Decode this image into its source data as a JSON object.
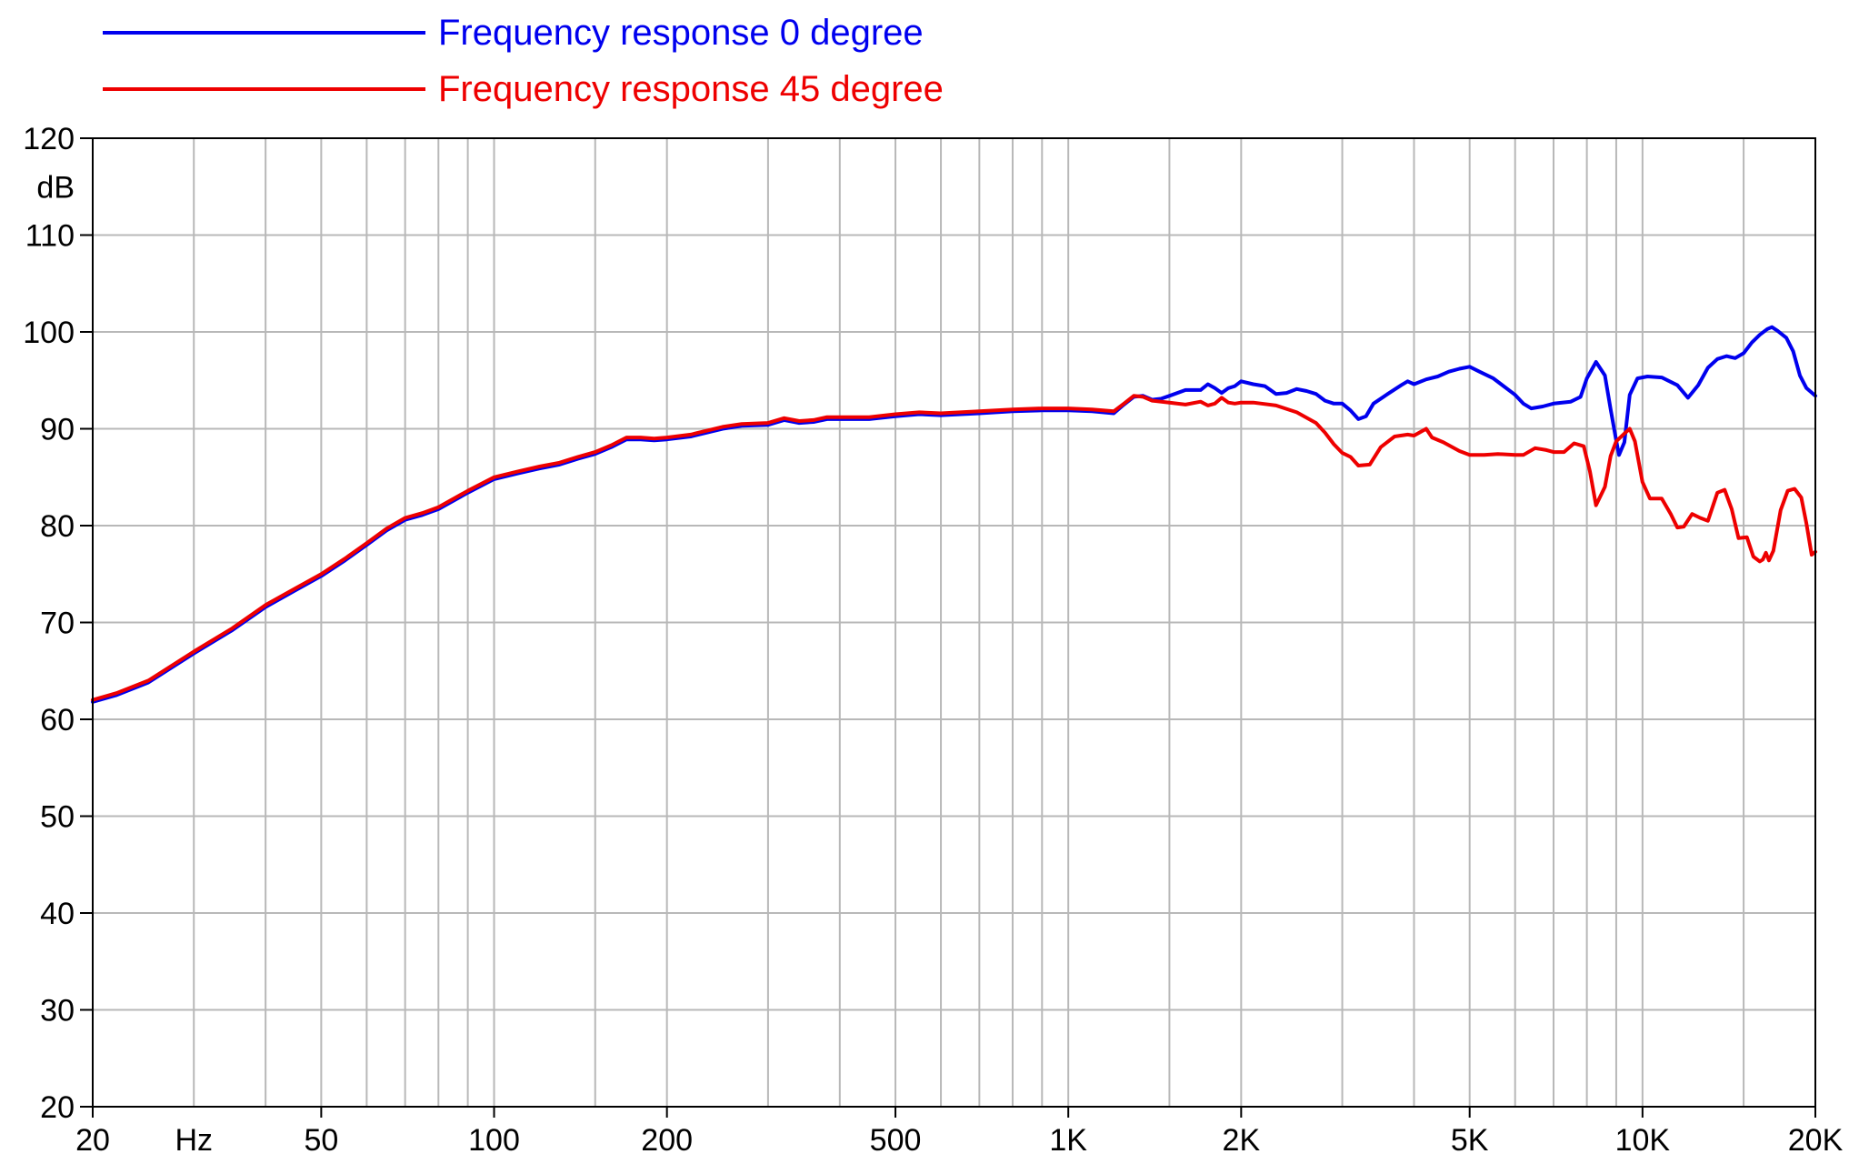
{
  "chart_data": {
    "type": "line",
    "title": "",
    "xlabel": "Hz",
    "ylabel": "dB",
    "x_scale": "log",
    "xlim": [
      20,
      20000
    ],
    "ylim": [
      20,
      120
    ],
    "grid": true,
    "legend_position": "top-left",
    "x_ticks": [
      {
        "value": 20,
        "label": "20"
      },
      {
        "value": 50,
        "label": "50"
      },
      {
        "value": 100,
        "label": "100"
      },
      {
        "value": 200,
        "label": "200"
      },
      {
        "value": 500,
        "label": "500"
      },
      {
        "value": 1000,
        "label": "1K"
      },
      {
        "value": 2000,
        "label": "2K"
      },
      {
        "value": 5000,
        "label": "5K"
      },
      {
        "value": 10000,
        "label": "10K"
      },
      {
        "value": 20000,
        "label": "20K"
      }
    ],
    "x_minor_gridlines": [
      30,
      40,
      60,
      70,
      80,
      90,
      150,
      300,
      400,
      600,
      700,
      800,
      900,
      1500,
      3000,
      4000,
      6000,
      7000,
      8000,
      9000,
      15000
    ],
    "y_ticks": [
      {
        "value": 20,
        "label": "20"
      },
      {
        "value": 30,
        "label": "30"
      },
      {
        "value": 40,
        "label": "40"
      },
      {
        "value": 50,
        "label": "50"
      },
      {
        "value": 60,
        "label": "60"
      },
      {
        "value": 70,
        "label": "70"
      },
      {
        "value": 80,
        "label": "80"
      },
      {
        "value": 90,
        "label": "90"
      },
      {
        "value": 100,
        "label": "100"
      },
      {
        "value": 110,
        "label": "110"
      },
      {
        "value": 120,
        "label": "120"
      }
    ],
    "series": [
      {
        "name": "Frequency response 0 degree",
        "color": "#0000ee",
        "points": [
          [
            20,
            61.8
          ],
          [
            22,
            62.5
          ],
          [
            25,
            63.8
          ],
          [
            30,
            66.8
          ],
          [
            35,
            69.2
          ],
          [
            40,
            71.6
          ],
          [
            45,
            73.3
          ],
          [
            50,
            74.8
          ],
          [
            55,
            76.4
          ],
          [
            60,
            78.0
          ],
          [
            65,
            79.5
          ],
          [
            70,
            80.6
          ],
          [
            75,
            81.1
          ],
          [
            80,
            81.7
          ],
          [
            90,
            83.4
          ],
          [
            100,
            84.8
          ],
          [
            110,
            85.4
          ],
          [
            120,
            85.9
          ],
          [
            130,
            86.3
          ],
          [
            140,
            86.9
          ],
          [
            150,
            87.4
          ],
          [
            160,
            88.1
          ],
          [
            170,
            88.9
          ],
          [
            180,
            88.9
          ],
          [
            190,
            88.8
          ],
          [
            200,
            88.9
          ],
          [
            220,
            89.2
          ],
          [
            250,
            90.0
          ],
          [
            270,
            90.3
          ],
          [
            300,
            90.4
          ],
          [
            320,
            90.9
          ],
          [
            340,
            90.6
          ],
          [
            360,
            90.7
          ],
          [
            380,
            91.0
          ],
          [
            400,
            91.0
          ],
          [
            450,
            91.0
          ],
          [
            500,
            91.3
          ],
          [
            550,
            91.5
          ],
          [
            600,
            91.4
          ],
          [
            700,
            91.6
          ],
          [
            800,
            91.8
          ],
          [
            900,
            91.9
          ],
          [
            1000,
            91.9
          ],
          [
            1100,
            91.8
          ],
          [
            1200,
            91.6
          ],
          [
            1250,
            92.5
          ],
          [
            1300,
            93.3
          ],
          [
            1350,
            93.4
          ],
          [
            1400,
            93.0
          ],
          [
            1450,
            93.1
          ],
          [
            1500,
            93.4
          ],
          [
            1600,
            94.0
          ],
          [
            1700,
            94.0
          ],
          [
            1750,
            94.6
          ],
          [
            1800,
            94.2
          ],
          [
            1850,
            93.7
          ],
          [
            1900,
            94.2
          ],
          [
            1950,
            94.4
          ],
          [
            2000,
            94.9
          ],
          [
            2100,
            94.6
          ],
          [
            2200,
            94.4
          ],
          [
            2300,
            93.6
          ],
          [
            2400,
            93.7
          ],
          [
            2500,
            94.1
          ],
          [
            2600,
            93.9
          ],
          [
            2700,
            93.6
          ],
          [
            2800,
            92.9
          ],
          [
            2900,
            92.6
          ],
          [
            3000,
            92.6
          ],
          [
            3100,
            91.9
          ],
          [
            3200,
            91.0
          ],
          [
            3300,
            91.3
          ],
          [
            3400,
            92.6
          ],
          [
            3600,
            93.6
          ],
          [
            3800,
            94.5
          ],
          [
            3900,
            94.9
          ],
          [
            4000,
            94.6
          ],
          [
            4200,
            95.1
          ],
          [
            4400,
            95.4
          ],
          [
            4600,
            95.9
          ],
          [
            4800,
            96.2
          ],
          [
            5000,
            96.4
          ],
          [
            5200,
            95.9
          ],
          [
            5500,
            95.2
          ],
          [
            6000,
            93.5
          ],
          [
            6200,
            92.6
          ],
          [
            6400,
            92.1
          ],
          [
            6700,
            92.3
          ],
          [
            7000,
            92.6
          ],
          [
            7500,
            92.8
          ],
          [
            7800,
            93.3
          ],
          [
            8000,
            95.2
          ],
          [
            8300,
            96.9
          ],
          [
            8600,
            95.5
          ],
          [
            8800,
            92.0
          ],
          [
            9000,
            88.8
          ],
          [
            9100,
            87.3
          ],
          [
            9300,
            88.6
          ],
          [
            9500,
            93.5
          ],
          [
            9800,
            95.2
          ],
          [
            10200,
            95.4
          ],
          [
            10800,
            95.3
          ],
          [
            11500,
            94.5
          ],
          [
            12000,
            93.2
          ],
          [
            12500,
            94.5
          ],
          [
            13000,
            96.3
          ],
          [
            13500,
            97.2
          ],
          [
            14000,
            97.5
          ],
          [
            14500,
            97.3
          ],
          [
            15000,
            97.8
          ],
          [
            15500,
            98.9
          ],
          [
            16000,
            99.7
          ],
          [
            16500,
            100.3
          ],
          [
            16800,
            100.5
          ],
          [
            17200,
            100.1
          ],
          [
            17800,
            99.4
          ],
          [
            18300,
            98.0
          ],
          [
            18800,
            95.5
          ],
          [
            19300,
            94.2
          ],
          [
            20000,
            93.4
          ]
        ]
      },
      {
        "name": "Frequency response 45 degree",
        "color": "#ee0000",
        "points": [
          [
            20,
            62.0
          ],
          [
            22,
            62.7
          ],
          [
            25,
            64.0
          ],
          [
            30,
            67.0
          ],
          [
            35,
            69.4
          ],
          [
            40,
            71.8
          ],
          [
            45,
            73.5
          ],
          [
            50,
            75.0
          ],
          [
            55,
            76.6
          ],
          [
            60,
            78.2
          ],
          [
            65,
            79.7
          ],
          [
            70,
            80.8
          ],
          [
            75,
            81.3
          ],
          [
            80,
            81.9
          ],
          [
            90,
            83.6
          ],
          [
            100,
            85.0
          ],
          [
            110,
            85.6
          ],
          [
            120,
            86.1
          ],
          [
            130,
            86.5
          ],
          [
            140,
            87.1
          ],
          [
            150,
            87.6
          ],
          [
            160,
            88.3
          ],
          [
            170,
            89.1
          ],
          [
            180,
            89.1
          ],
          [
            190,
            89.0
          ],
          [
            200,
            89.1
          ],
          [
            220,
            89.4
          ],
          [
            250,
            90.2
          ],
          [
            270,
            90.5
          ],
          [
            300,
            90.6
          ],
          [
            320,
            91.1
          ],
          [
            340,
            90.8
          ],
          [
            360,
            90.9
          ],
          [
            380,
            91.2
          ],
          [
            400,
            91.2
          ],
          [
            450,
            91.2
          ],
          [
            500,
            91.5
          ],
          [
            550,
            91.7
          ],
          [
            600,
            91.6
          ],
          [
            700,
            91.8
          ],
          [
            800,
            92.0
          ],
          [
            900,
            92.1
          ],
          [
            1000,
            92.1
          ],
          [
            1100,
            92.0
          ],
          [
            1200,
            91.8
          ],
          [
            1250,
            92.6
          ],
          [
            1300,
            93.4
          ],
          [
            1350,
            93.3
          ],
          [
            1400,
            92.9
          ],
          [
            1500,
            92.7
          ],
          [
            1600,
            92.5
          ],
          [
            1700,
            92.8
          ],
          [
            1750,
            92.4
          ],
          [
            1800,
            92.6
          ],
          [
            1850,
            93.2
          ],
          [
            1900,
            92.7
          ],
          [
            1950,
            92.6
          ],
          [
            2000,
            92.7
          ],
          [
            2100,
            92.7
          ],
          [
            2300,
            92.4
          ],
          [
            2500,
            91.7
          ],
          [
            2700,
            90.6
          ],
          [
            2800,
            89.6
          ],
          [
            2900,
            88.4
          ],
          [
            3000,
            87.5
          ],
          [
            3100,
            87.1
          ],
          [
            3200,
            86.2
          ],
          [
            3350,
            86.3
          ],
          [
            3500,
            88.1
          ],
          [
            3700,
            89.2
          ],
          [
            3900,
            89.4
          ],
          [
            4000,
            89.3
          ],
          [
            4200,
            90.0
          ],
          [
            4300,
            89.1
          ],
          [
            4500,
            88.6
          ],
          [
            4800,
            87.7
          ],
          [
            5000,
            87.3
          ],
          [
            5300,
            87.3
          ],
          [
            5600,
            87.4
          ],
          [
            6000,
            87.3
          ],
          [
            6200,
            87.3
          ],
          [
            6500,
            88.0
          ],
          [
            6800,
            87.8
          ],
          [
            7000,
            87.6
          ],
          [
            7300,
            87.6
          ],
          [
            7600,
            88.5
          ],
          [
            7900,
            88.2
          ],
          [
            8100,
            85.6
          ],
          [
            8300,
            82.1
          ],
          [
            8600,
            84.0
          ],
          [
            8800,
            87.2
          ],
          [
            9000,
            88.7
          ],
          [
            9300,
            89.5
          ],
          [
            9500,
            90.0
          ],
          [
            9700,
            88.7
          ],
          [
            10000,
            84.5
          ],
          [
            10300,
            82.8
          ],
          [
            10800,
            82.8
          ],
          [
            11200,
            81.2
          ],
          [
            11500,
            79.8
          ],
          [
            11800,
            79.9
          ],
          [
            12200,
            81.2
          ],
          [
            12600,
            80.8
          ],
          [
            13000,
            80.5
          ],
          [
            13500,
            83.4
          ],
          [
            13900,
            83.7
          ],
          [
            14300,
            81.7
          ],
          [
            14700,
            78.7
          ],
          [
            15200,
            78.8
          ],
          [
            15600,
            76.8
          ],
          [
            16000,
            76.3
          ],
          [
            16200,
            76.5
          ],
          [
            16400,
            77.2
          ],
          [
            16600,
            76.4
          ],
          [
            16900,
            77.4
          ],
          [
            17400,
            81.6
          ],
          [
            17900,
            83.6
          ],
          [
            18400,
            83.8
          ],
          [
            18900,
            82.9
          ],
          [
            19300,
            80.2
          ],
          [
            19700,
            77.0
          ],
          [
            20000,
            77.3
          ]
        ]
      }
    ]
  }
}
